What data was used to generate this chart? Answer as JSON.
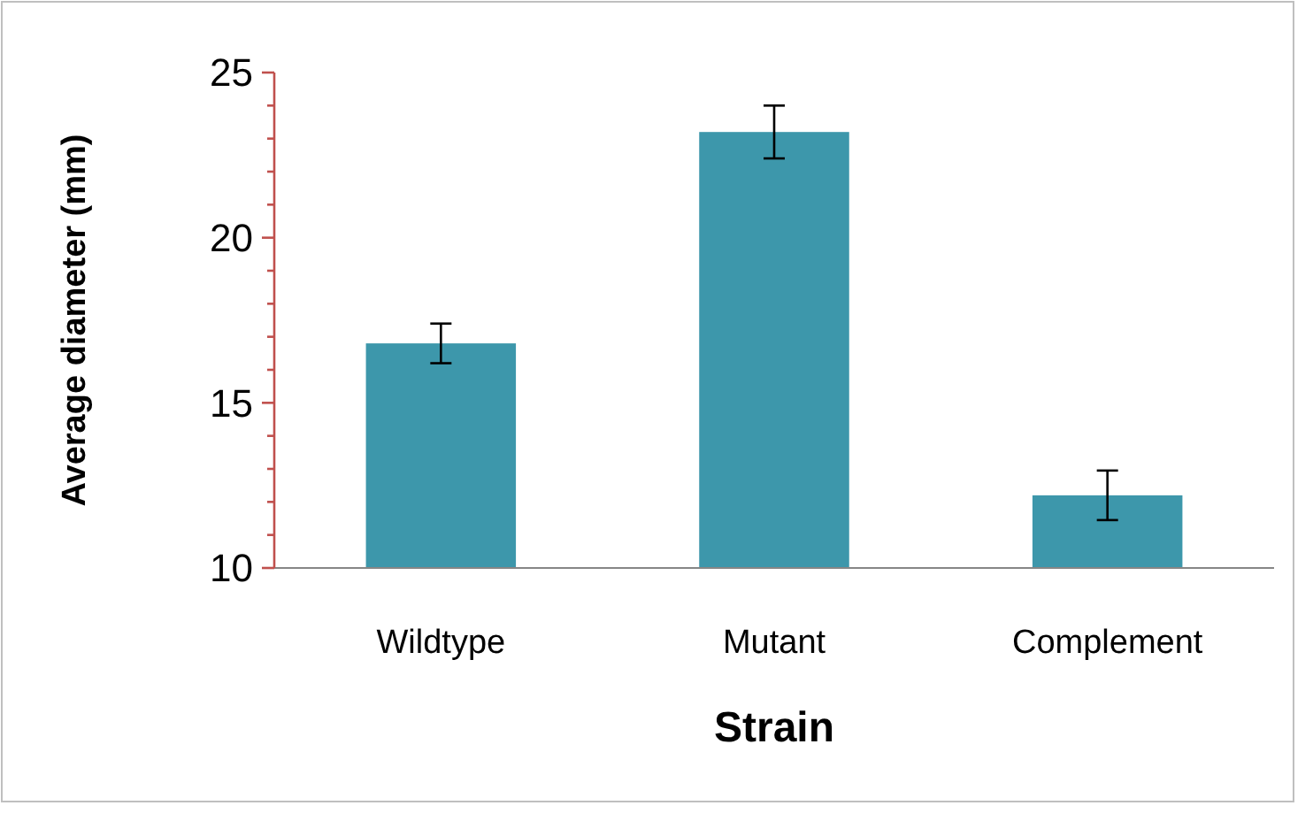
{
  "chart_data": {
    "type": "bar",
    "xlabel": "Strain",
    "ylabel": "Average diameter (mm)",
    "categories": [
      "Wildtype",
      "Mutant",
      "Complement"
    ],
    "values": [
      16.8,
      23.2,
      12.2
    ],
    "errors": [
      0.6,
      0.8,
      0.75
    ],
    "color": "#3d97ab",
    "ylim": [
      10,
      25
    ],
    "yticks": [
      10,
      {
        "value": 11,
        "label": null
      },
      {
        "value": 12,
        "label": null
      },
      {
        "value": 13,
        "label": null
      },
      {
        "value": 14,
        "label": null
      },
      15,
      {
        "value": 16,
        "label": null
      },
      {
        "value": 17,
        "label": null
      },
      {
        "value": 18,
        "label": null
      },
      {
        "value": 19,
        "label": null
      },
      20,
      {
        "value": 21,
        "label": null
      },
      {
        "value": 22,
        "label": null
      },
      {
        "value": 23,
        "label": null
      },
      {
        "value": 24,
        "label": null
      },
      25
    ],
    "grid": false
  }
}
